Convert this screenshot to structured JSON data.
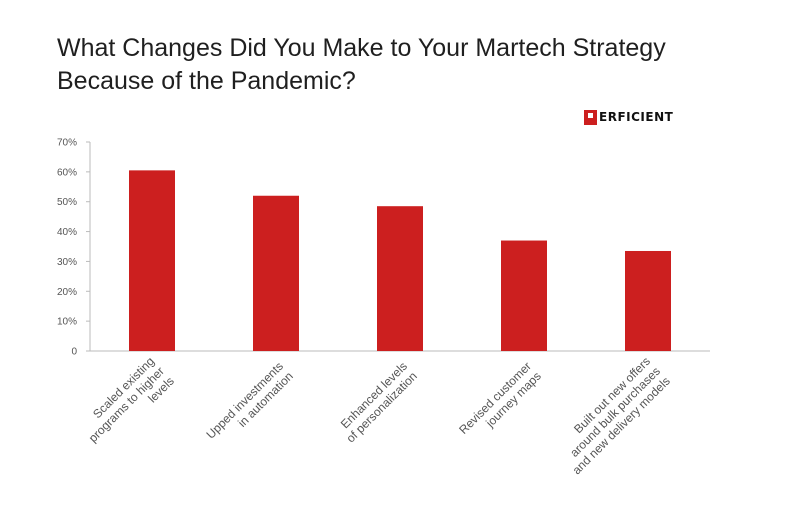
{
  "title": "What Changes Did You Make to Your Martech Strategy Because of the Pandemic?",
  "logo": {
    "text": "ERFICIENT"
  },
  "colors": {
    "bar": "#cc1f1f",
    "axis": "#bbbbbb",
    "text": "#555555"
  },
  "chart_data": {
    "type": "bar",
    "title": "What Changes Did You Make to Your Martech Strategy Because of the Pandemic?",
    "categories": [
      [
        "Scaled existing",
        "programs to higher",
        "levels"
      ],
      [
        "Upped investments",
        "in automation"
      ],
      [
        "Enhanced levels",
        "of personalization"
      ],
      [
        "Revised customer",
        "journey maps"
      ],
      [
        "Built out new offers",
        "around bulk purchases",
        "and new delivery models"
      ]
    ],
    "values": [
      60.5,
      52,
      48.5,
      37,
      33.5
    ],
    "ylim": [
      0,
      70
    ],
    "yticks": [
      0,
      10,
      20,
      30,
      40,
      50,
      60,
      70
    ],
    "ytick_labels": [
      "0",
      "10%",
      "20%",
      "30%",
      "40%",
      "50%",
      "60%",
      "70%"
    ],
    "xlabel": "",
    "ylabel": "",
    "grid": false,
    "legend": "none"
  }
}
